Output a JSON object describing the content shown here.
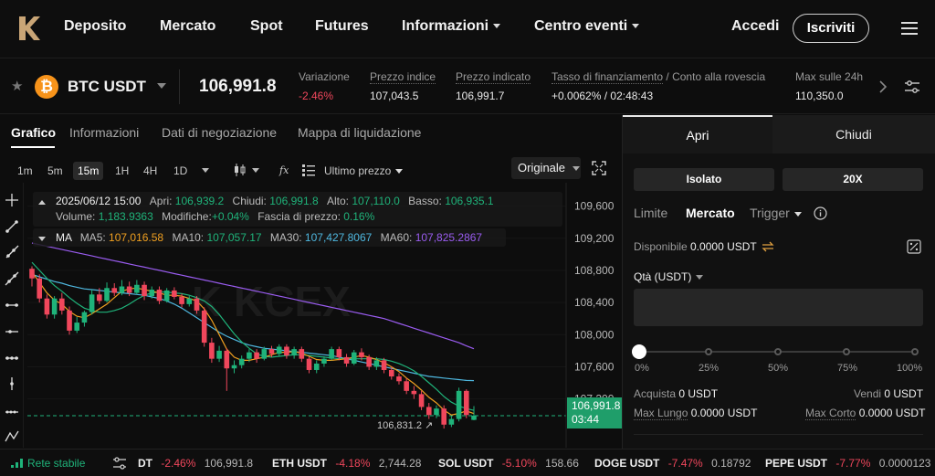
{
  "nav": {
    "items": [
      {
        "label": "Deposito",
        "dropdown": false
      },
      {
        "label": "Mercato",
        "dropdown": false
      },
      {
        "label": "Spot",
        "dropdown": false
      },
      {
        "label": "Futures",
        "dropdown": false
      },
      {
        "label": "Informazioni",
        "dropdown": true
      },
      {
        "label": "Centro eventi",
        "dropdown": true
      }
    ],
    "login": "Accedi",
    "signup": "Iscriviti"
  },
  "ticker": {
    "pair": "BTC USDT",
    "coin_glyph": "₿",
    "last_price": "106,991.8",
    "stats": [
      {
        "label": "Variazione",
        "value": "-2.46%",
        "tone": "red"
      },
      {
        "label": "Prezzo indice",
        "value": "107,043.5",
        "tone": "normal"
      },
      {
        "label": "Prezzo indicato",
        "value": "106,991.7",
        "tone": "normal"
      },
      {
        "label": "Tasso di finanziamento",
        "label_sep": " / ",
        "label2": "Conto alla rovescia",
        "value": "+0.0062%",
        "value_sep": " / ",
        "value2": "02:48:43",
        "tone": "normal"
      },
      {
        "label": "Max sulle 24h",
        "value": "110,350.0",
        "tone": "normal"
      }
    ]
  },
  "chart_tabs": [
    "Grafico",
    "Informazioni",
    "Dati di negoziazione",
    "Mappa di liquidazione"
  ],
  "toolbar": {
    "timeframes": [
      "1m",
      "5m",
      "15m",
      "1H",
      "4H",
      "1D"
    ],
    "active_timeframe": "15m",
    "price_type": "Ultimo prezzo",
    "view": "Originale"
  },
  "legend": {
    "date": "2025/06/12 15:00",
    "open_label": "Apri:",
    "open": "106,939.2",
    "close_label": "Chiudi:",
    "close": "106,991.8",
    "high_label": "Alto:",
    "high": "107,110.0",
    "low_label": "Basso:",
    "low": "106,935.1",
    "volume_label": "Volume:",
    "volume": "1,183.9363",
    "change_label": "Modifiche:",
    "change": "+0.04%",
    "range_label": "Fascia di prezzo:",
    "range": "0.16%",
    "ma_label": "MA",
    "ma5_label": "MA5:",
    "ma5": "107,016.58",
    "ma10_label": "MA10:",
    "ma10": "107,057.17",
    "ma30_label": "MA30:",
    "ma30": "107,427.8067",
    "ma60_label": "MA60:",
    "ma60": "107,825.2867"
  },
  "colors": {
    "up": "#1fb37a",
    "down": "#f0475c",
    "ma5": "#f0a020",
    "ma10": "#1fb37a",
    "ma30": "#4fb8e0",
    "ma60": "#9a5cf0"
  },
  "chart_data": {
    "type": "candlestick",
    "y_ticks": [
      "109,600",
      "109,200",
      "108,800",
      "108,400",
      "108,000",
      "107,600",
      "107,200"
    ],
    "ylim": [
      106650,
      109800
    ],
    "last_price_tag": "106,991.8",
    "countdown_tag": "03:44",
    "low_marker": "106,831.2",
    "candles": [
      [
        108820,
        108700,
        108850,
        108600
      ],
      [
        108700,
        108450,
        108750,
        108400
      ],
      [
        108450,
        108250,
        108500,
        108200
      ],
      [
        108250,
        108450,
        108480,
        108200
      ],
      [
        108450,
        108300,
        108520,
        108250
      ],
      [
        108300,
        108050,
        108350,
        108000
      ],
      [
        108050,
        108150,
        108220,
        108020
      ],
      [
        108150,
        108280,
        108300,
        108100
      ],
      [
        108280,
        108500,
        108560,
        108250
      ],
      [
        108500,
        108420,
        108580,
        108380
      ],
      [
        108420,
        108580,
        108650,
        108400
      ],
      [
        108580,
        108520,
        108640,
        108480
      ],
      [
        108520,
        108600,
        108680,
        108490
      ],
      [
        108600,
        108520,
        108660,
        108480
      ],
      [
        108520,
        108620,
        108680,
        108500
      ],
      [
        108620,
        108480,
        108660,
        108430
      ],
      [
        108480,
        108560,
        108600,
        108450
      ],
      [
        108560,
        108420,
        108600,
        108380
      ],
      [
        108420,
        108550,
        108580,
        108400
      ],
      [
        108550,
        108470,
        108590,
        108440
      ],
      [
        108470,
        108380,
        108510,
        108340
      ],
      [
        108380,
        108450,
        108480,
        108350
      ],
      [
        108450,
        108300,
        108480,
        108260
      ],
      [
        108300,
        107900,
        108340,
        107850
      ],
      [
        107900,
        107700,
        107960,
        107650
      ],
      [
        107700,
        107800,
        107860,
        107660
      ],
      [
        107800,
        107580,
        107830,
        107300
      ],
      [
        107580,
        107620,
        107680,
        107520
      ],
      [
        107620,
        107700,
        107740,
        107580
      ],
      [
        107700,
        107780,
        107820,
        107660
      ],
      [
        107780,
        107700,
        107820,
        107650
      ],
      [
        107700,
        107820,
        107850,
        107680
      ],
      [
        107820,
        107760,
        107860,
        107720
      ],
      [
        107760,
        107850,
        107880,
        107730
      ],
      [
        107850,
        107740,
        107880,
        107700
      ],
      [
        107740,
        107820,
        107850,
        107700
      ],
      [
        107820,
        107700,
        107850,
        107660
      ],
      [
        107700,
        107560,
        107730,
        107520
      ],
      [
        107560,
        107640,
        107680,
        107520
      ],
      [
        107640,
        107700,
        107730,
        107600
      ],
      [
        107700,
        107820,
        107850,
        107680
      ],
      [
        107820,
        107720,
        107850,
        107680
      ],
      [
        107720,
        107640,
        107760,
        107600
      ],
      [
        107640,
        107780,
        107810,
        107620
      ],
      [
        107780,
        107720,
        107830,
        107680
      ],
      [
        107720,
        107600,
        107750,
        107560
      ],
      [
        107600,
        107680,
        107720,
        107560
      ],
      [
        107680,
        107560,
        107710,
        107520
      ],
      [
        107560,
        107480,
        107600,
        107440
      ],
      [
        107480,
        107420,
        107520,
        107380
      ],
      [
        107420,
        107300,
        107460,
        107260
      ],
      [
        107300,
        107260,
        107360,
        107200
      ],
      [
        107260,
        107100,
        107300,
        107060
      ],
      [
        107100,
        107000,
        107150,
        106950
      ],
      [
        107000,
        107080,
        107120,
        106960
      ],
      [
        107080,
        106880,
        107120,
        106831
      ],
      [
        106880,
        106950,
        106990,
        106850
      ],
      [
        106950,
        107300,
        107340,
        106920
      ],
      [
        107300,
        107000,
        107320,
        106960
      ],
      [
        106939,
        106992,
        107110,
        106935
      ]
    ],
    "ma5": [
      108780,
      108650,
      108520,
      108430,
      108380,
      108290,
      108230,
      108210,
      108260,
      108320,
      108380,
      108460,
      108540,
      108570,
      108580,
      108560,
      108540,
      108520,
      108490,
      108490,
      108480,
      108450,
      108420,
      108320,
      108180,
      108000,
      107820,
      107720,
      107680,
      107680,
      107700,
      107720,
      107750,
      107780,
      107780,
      107790,
      107770,
      107730,
      107690,
      107680,
      107680,
      107690,
      107700,
      107720,
      107740,
      107720,
      107690,
      107650,
      107600,
      107540,
      107460,
      107390,
      107310,
      107220,
      107150,
      107060,
      107000,
      107020,
      107050,
      107017
    ],
    "ma10": [
      108900,
      108800,
      108700,
      108610,
      108540,
      108460,
      108390,
      108330,
      108300,
      108280,
      108280,
      108300,
      108330,
      108380,
      108440,
      108490,
      108520,
      108530,
      108530,
      108520,
      108510,
      108490,
      108460,
      108420,
      108350,
      108250,
      108130,
      108010,
      107910,
      107830,
      107760,
      107730,
      107720,
      107730,
      107740,
      107750,
      107750,
      107740,
      107730,
      107720,
      107710,
      107700,
      107700,
      107700,
      107700,
      107700,
      107700,
      107690,
      107670,
      107640,
      107600,
      107550,
      107480,
      107400,
      107320,
      107230,
      107160,
      107110,
      107080,
      107057
    ],
    "ma30": [
      108750,
      108720,
      108690,
      108660,
      108640,
      108610,
      108590,
      108570,
      108560,
      108550,
      108540,
      108530,
      108520,
      108510,
      108500,
      108490,
      108470,
      108450,
      108420,
      108380,
      108330,
      108270,
      108210,
      108150,
      108090,
      108030,
      107980,
      107940,
      107900,
      107870,
      107850,
      107830,
      107820,
      107810,
      107800,
      107790,
      107780,
      107770,
      107760,
      107750,
      107740,
      107720,
      107700,
      107680,
      107660,
      107640,
      107620,
      107600,
      107580,
      107560,
      107540,
      107520,
      107500,
      107480,
      107470,
      107460,
      107450,
      107440,
      107430,
      107428
    ],
    "ma60": [
      109140,
      109120,
      109100,
      109080,
      109060,
      109040,
      109020,
      109000,
      108980,
      108960,
      108940,
      108920,
      108900,
      108880,
      108860,
      108840,
      108820,
      108800,
      108780,
      108760,
      108740,
      108720,
      108700,
      108680,
      108660,
      108640,
      108620,
      108600,
      108580,
      108560,
      108540,
      108520,
      108500,
      108480,
      108460,
      108440,
      108420,
      108400,
      108380,
      108360,
      108340,
      108320,
      108300,
      108280,
      108260,
      108240,
      108220,
      108200,
      108170,
      108140,
      108110,
      108080,
      108050,
      108020,
      107990,
      107960,
      107930,
      107900,
      107860,
      107825
    ]
  },
  "trade": {
    "tab_open": "Apri",
    "tab_close": "Chiudi",
    "margin_mode": "Isolato",
    "leverage": "20X",
    "order_types": [
      "Limite",
      "Mercato",
      "Trigger"
    ],
    "active_order_type": "Mercato",
    "available_label": "Disponibile",
    "available_value": "0.0000 USDT",
    "qty_label": "Qtà (USDT)",
    "qty_value": "",
    "slider_marks": [
      "0%",
      "25%",
      "50%",
      "75%",
      "100%"
    ],
    "slider_value": 0,
    "buy_label": "Acquista",
    "buy_value": "0 USDT",
    "sell_label": "Vendi",
    "sell_value": "0 USDT",
    "max_long_label": "Max Lungo",
    "max_long_value": "0.0000 USDT",
    "max_short_label": "Max Corto",
    "max_short_value": "0.0000 USDT"
  },
  "bottom": {
    "network": "Rete stabile",
    "tickers": [
      {
        "sym": "DT",
        "chg": "-2.46%",
        "price": "106,991.8"
      },
      {
        "sym": "ETH USDT",
        "chg": "-4.18%",
        "price": "2,744.28"
      },
      {
        "sym": "SOL USDT",
        "chg": "-5.10%",
        "price": "158.66"
      },
      {
        "sym": "DOGE USDT",
        "chg": "-7.47%",
        "price": "0.18792"
      },
      {
        "sym": "PEPE USDT",
        "chg": "-7.77%",
        "price": "0.0000123"
      }
    ]
  }
}
